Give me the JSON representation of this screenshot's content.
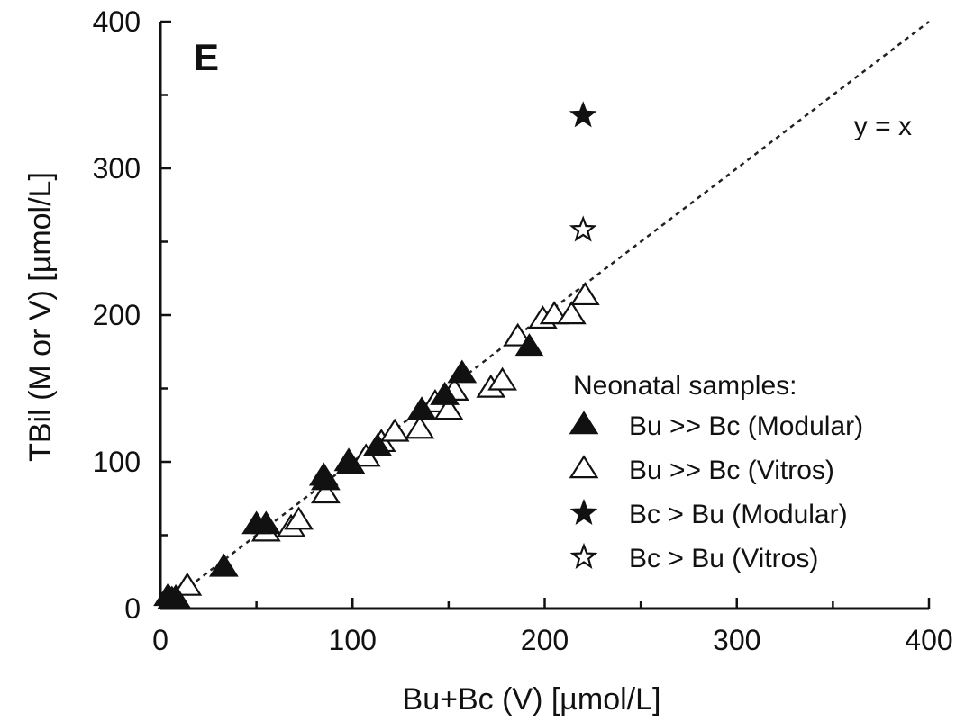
{
  "chart_data": {
    "type": "scatter",
    "panel_label": "E",
    "xlabel": "Bu+Bc (V) [µmol/L]",
    "ylabel": "TBil (M or V) [µmol/L]",
    "xlim": [
      0,
      400
    ],
    "ylim": [
      0,
      400
    ],
    "x_ticks": [
      0,
      100,
      200,
      300,
      400
    ],
    "y_ticks": [
      0,
      100,
      200,
      300,
      400
    ],
    "x_minor_step": 50,
    "y_minor_step": 50,
    "grid": false,
    "reference_line": {
      "label": "y = x",
      "style": "dotted",
      "slope": 1,
      "intercept": 0
    },
    "legend": {
      "title": "Neonatal samples:",
      "placement": "lower-right"
    },
    "series": [
      {
        "name": "Bu >> Bc (Modular)",
        "marker": "triangle",
        "filled": true,
        "x": [
          4,
          6,
          8,
          33,
          50,
          55,
          85,
          86,
          98,
          99,
          113,
          136,
          148,
          157,
          192
        ],
        "y": [
          8,
          6,
          7,
          28,
          57,
          57,
          90,
          87,
          100,
          98,
          110,
          135,
          145,
          160,
          178
        ]
      },
      {
        "name": "Bu >> Bc (Vitros)",
        "marker": "triangle",
        "filled": false,
        "x": [
          14,
          55,
          68,
          72,
          86,
          107,
          115,
          122,
          135,
          143,
          150,
          153,
          172,
          178,
          186,
          199,
          205,
          214,
          221
        ],
        "y": [
          15,
          52,
          55,
          60,
          78,
          103,
          113,
          120,
          122,
          140,
          135,
          148,
          150,
          155,
          185,
          197,
          200,
          200,
          213
        ]
      },
      {
        "name": "Bc > Bu (Modular)",
        "marker": "star",
        "filled": true,
        "x": [
          220
        ],
        "y": [
          336
        ]
      },
      {
        "name": "Bc > Bu (Vitros)",
        "marker": "star",
        "filled": false,
        "x": [
          220
        ],
        "y": [
          258
        ]
      }
    ]
  }
}
